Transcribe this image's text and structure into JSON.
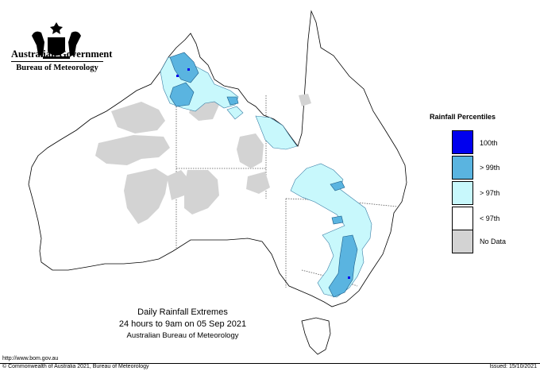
{
  "header": {
    "government": "Australian Government",
    "bureau": "Bureau of Meteorology",
    "emblem_icon": "coat-of-arms-icon"
  },
  "legend": {
    "title": "Rainfall Percentiles",
    "items": [
      {
        "label": "100th",
        "color": "#0000ee"
      },
      {
        "label": "> 99th",
        "color": "#5ab4e0"
      },
      {
        "label": "> 97th",
        "color": "#c8f8fc"
      },
      {
        "label": "< 97th",
        "color": "#ffffff"
      },
      {
        "label": "No Data",
        "color": "#d3d3d3"
      }
    ]
  },
  "caption": {
    "title": "Daily Rainfall Extremes",
    "period": "24 hours to 9am on 05 Sep 2021",
    "source": "Australian Bureau of Meteorology"
  },
  "footer": {
    "url": "http://www.bom.gov.au",
    "copyright": "© Commonwealth of Australia 2021, Bureau of Meteorology",
    "issued": "Issued: 15/10/2021"
  }
}
